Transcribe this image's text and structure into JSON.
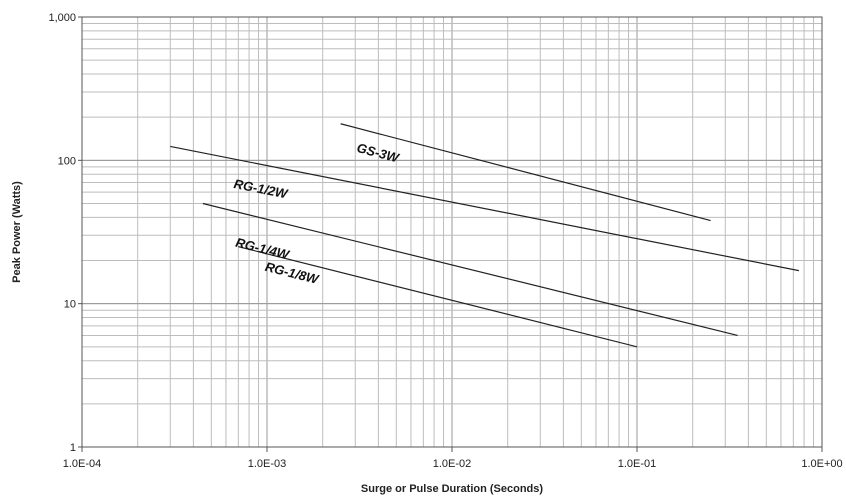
{
  "chart_data": {
    "type": "line",
    "xlabel": "Surge or Pulse Duration (Seconds)",
    "ylabel": "Peak Power (Watts)",
    "x_scale": "log",
    "y_scale": "log",
    "xlim": [
      0.0001,
      1
    ],
    "ylim": [
      1,
      1000
    ],
    "grid": true,
    "x_ticks": [
      0.0001,
      0.001,
      0.01,
      0.1,
      1
    ],
    "x_tick_labels": [
      "1.0E-04",
      "1.0E-03",
      "1.0E-02",
      "1.0E-01",
      "1.0E+00"
    ],
    "y_ticks": [
      1,
      10,
      100,
      1000
    ],
    "y_tick_labels": [
      "1",
      "10",
      "100",
      "1,000"
    ],
    "series": [
      {
        "name": "GS-3W",
        "x": [
          0.0025,
          0.25
        ],
        "y": [
          180,
          38
        ]
      },
      {
        "name": "RG-1/2W",
        "x": [
          0.0003,
          0.75
        ],
        "y": [
          125,
          17
        ]
      },
      {
        "name": "RG-1/4W",
        "x": [
          0.00045,
          0.35
        ],
        "y": [
          50,
          6
        ]
      },
      {
        "name": "RG-1/8W",
        "x": [
          0.0007,
          0.1
        ],
        "y": [
          25,
          5
        ]
      }
    ]
  }
}
